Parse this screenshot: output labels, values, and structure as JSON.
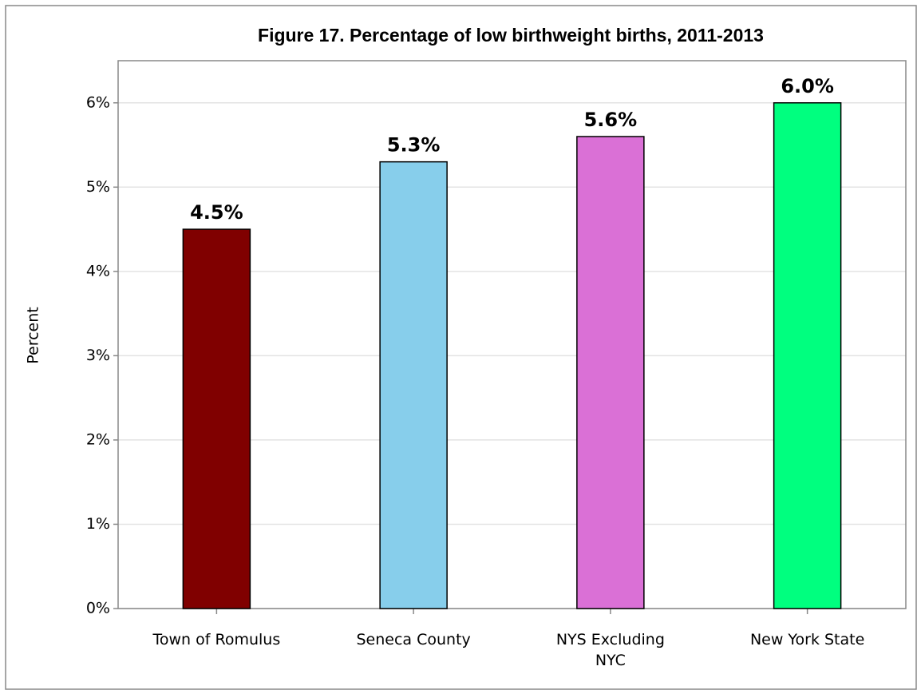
{
  "chart_data": {
    "type": "bar",
    "title": "Figure 17. Percentage of low birthweight births, 2011-2013",
    "ylabel": "Percent",
    "categories": [
      "Town of Romulus",
      "Seneca County",
      "NYS Excluding NYC",
      "New York State"
    ],
    "values": [
      4.5,
      5.3,
      5.6,
      6.0
    ],
    "value_labels": [
      "4.5%",
      "5.3%",
      "5.6%",
      "6.0%"
    ],
    "colors": [
      "#800000",
      "#87ceeb",
      "#da70d6",
      "#00ff7f"
    ],
    "ylim": [
      0,
      6.5
    ],
    "yticks": [
      {
        "value": 0,
        "label": "0%"
      },
      {
        "value": 1,
        "label": "1%"
      },
      {
        "value": 2,
        "label": "2%"
      },
      {
        "value": 3,
        "label": "3%"
      },
      {
        "value": 4,
        "label": "4%"
      },
      {
        "value": 5,
        "label": "5%"
      },
      {
        "value": 6,
        "label": "6%"
      }
    ],
    "grid": true
  }
}
